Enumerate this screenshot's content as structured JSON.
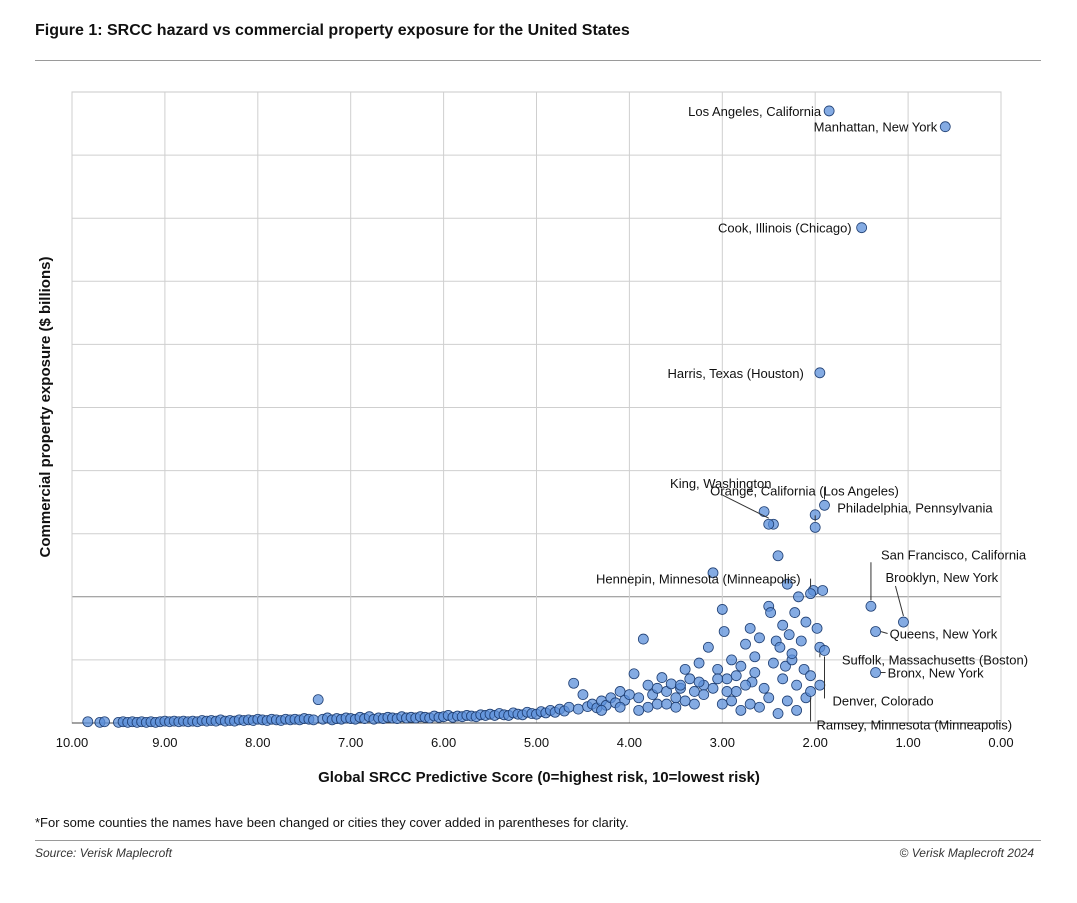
{
  "figure": {
    "title": "Figure 1: SRCC hazard vs commercial property exposure for the United States",
    "footnote": "*For some counties the names have been changed or cities they cover added in parentheses for clarity.",
    "source": "Source: Verisk Maplecroft",
    "copyright": "© Verisk Maplecroft 2024"
  },
  "chart_data": {
    "type": "scatter",
    "xlabel": "Global SRCC Predictive Score (0=highest risk, 10=lowest risk)",
    "ylabel": "Commercial property exposure ($ billions)",
    "xlim": [
      10,
      0
    ],
    "x_reversed": true,
    "ylim": [
      0,
      10
    ],
    "y_tick_labels_shown": false,
    "x_ticks": [
      10,
      9,
      8,
      7,
      6,
      5,
      4,
      3,
      2,
      1,
      0
    ],
    "x_tick_labels": [
      "10.00",
      "9.00",
      "8.00",
      "7.00",
      "6.00",
      "5.00",
      "4.00",
      "3.00",
      "2.00",
      "1.00",
      "0.00"
    ],
    "grid": true,
    "legend": "none",
    "marker_color": "#5b8fd9",
    "marker_edge_color": "#1f3f73",
    "labeled_points": [
      {
        "label": "Los Angeles, California",
        "x": 1.85,
        "y": 9.7
      },
      {
        "label": "Manhattan, New York",
        "x": 0.6,
        "y": 9.45
      },
      {
        "label": "Cook, Illinois (Chicago)",
        "x": 1.5,
        "y": 7.85
      },
      {
        "label": "Harris, Texas (Houston)",
        "x": 1.95,
        "y": 5.55
      },
      {
        "label": "Orange, California (Los Angeles)",
        "x": 1.9,
        "y": 3.45
      },
      {
        "label": "King, Washington",
        "x": 2.5,
        "y": 3.15
      },
      {
        "label": "Philadelphia, Pennsylvania",
        "x": 2.0,
        "y": 3.1
      },
      {
        "label": "Hennepin, Minnesota (Minneapolis)",
        "x": 2.05,
        "y": 2.05
      },
      {
        "label": "San Francisco, California",
        "x": 1.4,
        "y": 1.85
      },
      {
        "label": "Brooklyn, New York",
        "x": 1.05,
        "y": 1.6
      },
      {
        "label": "Queens, New York",
        "x": 1.35,
        "y": 1.45
      },
      {
        "label": "Suffolk, Massachusetts (Boston)",
        "x": 1.95,
        "y": 1.2
      },
      {
        "label": "Bronx, New York",
        "x": 1.35,
        "y": 0.8
      },
      {
        "label": "Denver, Colorado",
        "x": 1.9,
        "y": 1.15
      },
      {
        "label": "Ramsey, Minnesota (Minneapolis)",
        "x": 2.05,
        "y": 0.5
      }
    ],
    "points": [
      [
        9.83,
        0.02
      ],
      [
        9.7,
        0.01
      ],
      [
        9.65,
        0.02
      ],
      [
        9.5,
        0.01
      ],
      [
        9.45,
        0.02
      ],
      [
        9.4,
        0.01
      ],
      [
        9.35,
        0.02
      ],
      [
        9.3,
        0.01
      ],
      [
        9.25,
        0.02
      ],
      [
        9.2,
        0.01
      ],
      [
        9.15,
        0.02
      ],
      [
        9.1,
        0.01
      ],
      [
        9.05,
        0.02
      ],
      [
        9.0,
        0.03
      ],
      [
        8.95,
        0.02
      ],
      [
        8.9,
        0.03
      ],
      [
        8.85,
        0.02
      ],
      [
        8.8,
        0.03
      ],
      [
        8.75,
        0.02
      ],
      [
        8.7,
        0.03
      ],
      [
        8.65,
        0.02
      ],
      [
        8.6,
        0.04
      ],
      [
        8.55,
        0.03
      ],
      [
        8.5,
        0.04
      ],
      [
        8.45,
        0.03
      ],
      [
        8.4,
        0.05
      ],
      [
        8.35,
        0.03
      ],
      [
        8.3,
        0.04
      ],
      [
        8.25,
        0.03
      ],
      [
        8.2,
        0.05
      ],
      [
        8.15,
        0.04
      ],
      [
        8.1,
        0.05
      ],
      [
        8.05,
        0.04
      ],
      [
        8.0,
        0.06
      ],
      [
        7.95,
        0.05
      ],
      [
        7.9,
        0.04
      ],
      [
        7.85,
        0.06
      ],
      [
        7.8,
        0.05
      ],
      [
        7.75,
        0.04
      ],
      [
        7.7,
        0.06
      ],
      [
        7.65,
        0.05
      ],
      [
        7.6,
        0.06
      ],
      [
        7.55,
        0.05
      ],
      [
        7.5,
        0.07
      ],
      [
        7.45,
        0.06
      ],
      [
        7.4,
        0.05
      ],
      [
        7.35,
        0.37
      ],
      [
        7.3,
        0.06
      ],
      [
        7.25,
        0.08
      ],
      [
        7.2,
        0.05
      ],
      [
        7.15,
        0.07
      ],
      [
        7.1,
        0.06
      ],
      [
        7.05,
        0.08
      ],
      [
        7.0,
        0.07
      ],
      [
        6.95,
        0.06
      ],
      [
        6.9,
        0.09
      ],
      [
        6.85,
        0.07
      ],
      [
        6.8,
        0.1
      ],
      [
        6.75,
        0.06
      ],
      [
        6.7,
        0.08
      ],
      [
        6.65,
        0.07
      ],
      [
        6.6,
        0.09
      ],
      [
        6.55,
        0.08
      ],
      [
        6.5,
        0.07
      ],
      [
        6.45,
        0.1
      ],
      [
        6.4,
        0.08
      ],
      [
        6.35,
        0.09
      ],
      [
        6.3,
        0.08
      ],
      [
        6.25,
        0.1
      ],
      [
        6.2,
        0.09
      ],
      [
        6.15,
        0.08
      ],
      [
        6.1,
        0.11
      ],
      [
        6.05,
        0.09
      ],
      [
        6.0,
        0.1
      ],
      [
        5.95,
        0.12
      ],
      [
        5.9,
        0.09
      ],
      [
        5.85,
        0.11
      ],
      [
        5.8,
        0.1
      ],
      [
        5.75,
        0.12
      ],
      [
        5.7,
        0.11
      ],
      [
        5.65,
        0.1
      ],
      [
        5.6,
        0.13
      ],
      [
        5.55,
        0.12
      ],
      [
        5.5,
        0.14
      ],
      [
        5.45,
        0.12
      ],
      [
        5.4,
        0.15
      ],
      [
        5.35,
        0.13
      ],
      [
        5.3,
        0.12
      ],
      [
        5.25,
        0.16
      ],
      [
        5.2,
        0.14
      ],
      [
        5.15,
        0.13
      ],
      [
        5.1,
        0.17
      ],
      [
        5.05,
        0.15
      ],
      [
        5.0,
        0.14
      ],
      [
        4.95,
        0.18
      ],
      [
        4.9,
        0.16
      ],
      [
        4.85,
        0.2
      ],
      [
        4.8,
        0.17
      ],
      [
        4.75,
        0.22
      ],
      [
        4.7,
        0.19
      ],
      [
        4.65,
        0.25
      ],
      [
        4.6,
        0.63
      ],
      [
        4.55,
        0.22
      ],
      [
        4.5,
        0.45
      ],
      [
        4.45,
        0.26
      ],
      [
        4.4,
        0.3
      ],
      [
        4.35,
        0.24
      ],
      [
        4.3,
        0.35
      ],
      [
        4.25,
        0.28
      ],
      [
        4.2,
        0.4
      ],
      [
        4.15,
        0.32
      ],
      [
        4.1,
        0.5
      ],
      [
        4.05,
        0.36
      ],
      [
        4.0,
        0.45
      ],
      [
        3.95,
        0.78
      ],
      [
        3.9,
        0.4
      ],
      [
        3.85,
        1.33
      ],
      [
        3.8,
        0.6
      ],
      [
        3.75,
        0.45
      ],
      [
        3.7,
        0.55
      ],
      [
        3.65,
        0.72
      ],
      [
        3.6,
        0.5
      ],
      [
        3.55,
        0.62
      ],
      [
        3.5,
        0.4
      ],
      [
        3.45,
        0.55
      ],
      [
        3.4,
        0.85
      ],
      [
        3.35,
        0.7
      ],
      [
        3.3,
        0.5
      ],
      [
        3.25,
        0.95
      ],
      [
        3.2,
        0.6
      ],
      [
        3.15,
        1.2
      ],
      [
        3.1,
        2.38
      ],
      [
        3.05,
        0.85
      ],
      [
        3.0,
        1.8
      ],
      [
        2.98,
        1.45
      ],
      [
        2.95,
        0.7
      ],
      [
        2.9,
        1.0
      ],
      [
        2.85,
        0.5
      ],
      [
        2.8,
        0.9
      ],
      [
        2.75,
        1.25
      ],
      [
        2.7,
        1.5
      ],
      [
        2.68,
        0.65
      ],
      [
        2.65,
        1.05
      ],
      [
        2.6,
        1.35
      ],
      [
        2.55,
        3.35
      ],
      [
        2.5,
        1.85
      ],
      [
        2.48,
        1.75
      ],
      [
        2.45,
        3.15
      ],
      [
        2.42,
        1.3
      ],
      [
        2.4,
        2.65
      ],
      [
        2.38,
        1.2
      ],
      [
        2.35,
        1.55
      ],
      [
        2.32,
        0.9
      ],
      [
        2.3,
        2.2
      ],
      [
        2.28,
        1.4
      ],
      [
        2.25,
        1.0
      ],
      [
        2.22,
        1.75
      ],
      [
        2.2,
        0.6
      ],
      [
        2.18,
        2.0
      ],
      [
        2.15,
        1.3
      ],
      [
        2.12,
        0.85
      ],
      [
        2.1,
        1.6
      ],
      [
        2.05,
        0.75
      ],
      [
        2.02,
        2.1
      ],
      [
        2.0,
        3.3
      ],
      [
        1.98,
        1.5
      ],
      [
        1.95,
        0.6
      ],
      [
        1.92,
        2.1
      ],
      [
        3.0,
        0.3
      ],
      [
        2.8,
        0.2
      ],
      [
        2.6,
        0.25
      ],
      [
        2.4,
        0.15
      ],
      [
        2.2,
        0.2
      ],
      [
        3.3,
        0.3
      ],
      [
        3.5,
        0.25
      ],
      [
        3.7,
        0.3
      ],
      [
        3.9,
        0.2
      ],
      [
        4.1,
        0.25
      ],
      [
        4.3,
        0.2
      ],
      [
        2.9,
        0.35
      ],
      [
        2.7,
        0.3
      ],
      [
        2.5,
        0.4
      ],
      [
        3.2,
        0.45
      ],
      [
        3.4,
        0.35
      ],
      [
        3.6,
        0.3
      ],
      [
        3.8,
        0.25
      ],
      [
        2.3,
        0.35
      ],
      [
        2.1,
        0.4
      ],
      [
        3.1,
        0.55
      ],
      [
        2.95,
        0.5
      ],
      [
        2.75,
        0.6
      ],
      [
        2.55,
        0.55
      ],
      [
        2.35,
        0.7
      ],
      [
        3.25,
        0.65
      ],
      [
        3.45,
        0.6
      ],
      [
        2.65,
        0.8
      ],
      [
        2.85,
        0.75
      ],
      [
        3.05,
        0.7
      ],
      [
        2.45,
        0.95
      ],
      [
        2.25,
        1.1
      ]
    ]
  }
}
